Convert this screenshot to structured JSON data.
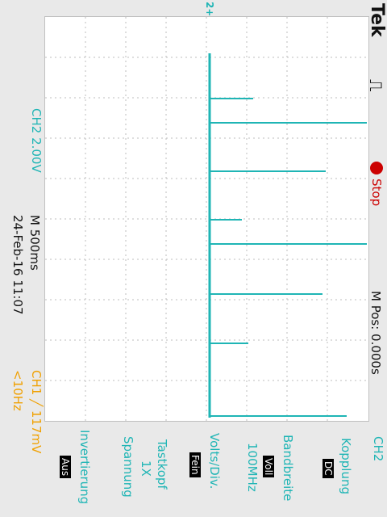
{
  "header": {
    "brand": "Tek",
    "trigger_symbol": "⎍",
    "run_state": "Stop"
  },
  "channel2": {
    "scale": "CH2  2.00V",
    "marker": "2+"
  },
  "timebase": {
    "main": "M 500ms",
    "date_time": "24-Feb-16 11:07",
    "position": "M Pos: 0.000s"
  },
  "trigger": {
    "info": "CH1 ╱ 117mV",
    "freq": "<10Hz"
  },
  "menu": {
    "title": "CH2",
    "items": [
      {
        "label": "Kopplung",
        "value": "DC"
      },
      {
        "label": "Bandbreite",
        "value": "Voll",
        "value2": "100MHz"
      },
      {
        "label": "Volts/Div.",
        "value": "Fein"
      },
      {
        "label": "Tastkopf",
        "value": "1X",
        "value2": "Spannung"
      },
      {
        "label": "Invertierung",
        "value": "Aus"
      }
    ]
  },
  "colors": {
    "trace": "#1fb5b5",
    "ch2": "#1fb5b5",
    "ch1": "#f0a000",
    "stop": "#cc0000",
    "text": "#111111"
  }
}
